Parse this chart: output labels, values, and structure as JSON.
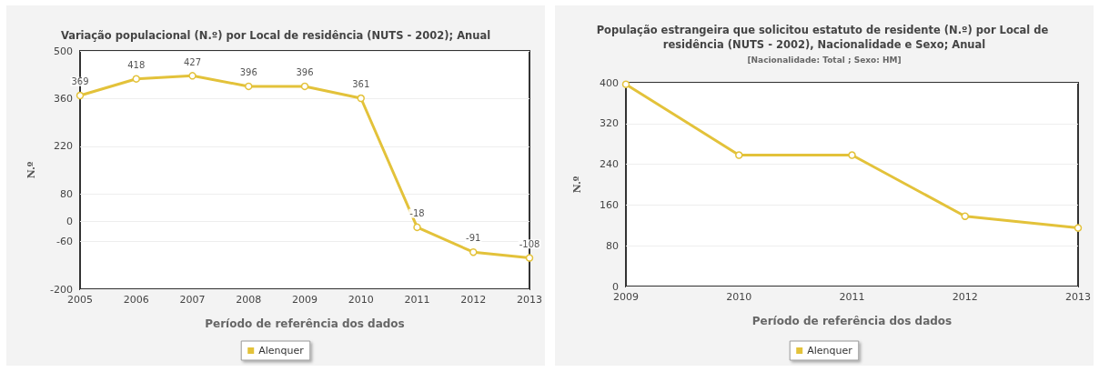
{
  "chart_data": [
    {
      "type": "line",
      "title": "Variação populacional (N.º) por Local de residência (NUTS - 2002); Anual",
      "xlabel": "Período de referência dos dados",
      "ylabel": "N.º",
      "categories": [
        "2005",
        "2006",
        "2007",
        "2008",
        "2009",
        "2010",
        "2011",
        "2012",
        "2013"
      ],
      "series": [
        {
          "name": "Alenquer",
          "color": "#e3c23a",
          "values": [
            369,
            418,
            427,
            396,
            396,
            361,
            -18,
            -91,
            -108
          ]
        }
      ],
      "ylim": [
        -200,
        500
      ],
      "yticks": [
        -200,
        -60,
        0,
        80,
        220,
        360,
        500
      ],
      "grid": "y",
      "legend": "bottom",
      "marker": "circle",
      "line_style": "solid",
      "data_labels": true
    },
    {
      "type": "line",
      "title": "População estrangeira que solicitou estatuto de residente (N.º) por Local de residência (NUTS - 2002), Nacionalidade e Sexo; Anual",
      "subtitle": "[Nacionalidade: Total ; Sexo: HM]",
      "xlabel": "Período de referência dos dados",
      "ylabel": "N.º",
      "categories": [
        "2009",
        "2010",
        "2011",
        "2012",
        "2013"
      ],
      "series": [
        {
          "name": "Alenquer",
          "color": "#e3c23a",
          "values": [
            397,
            258,
            258,
            138,
            115
          ]
        }
      ],
      "ylim": [
        0,
        400
      ],
      "yticks": [
        0,
        80,
        160,
        240,
        320,
        400
      ],
      "grid": "y",
      "legend": "bottom",
      "marker": "circle",
      "line_style": "solid"
    }
  ]
}
